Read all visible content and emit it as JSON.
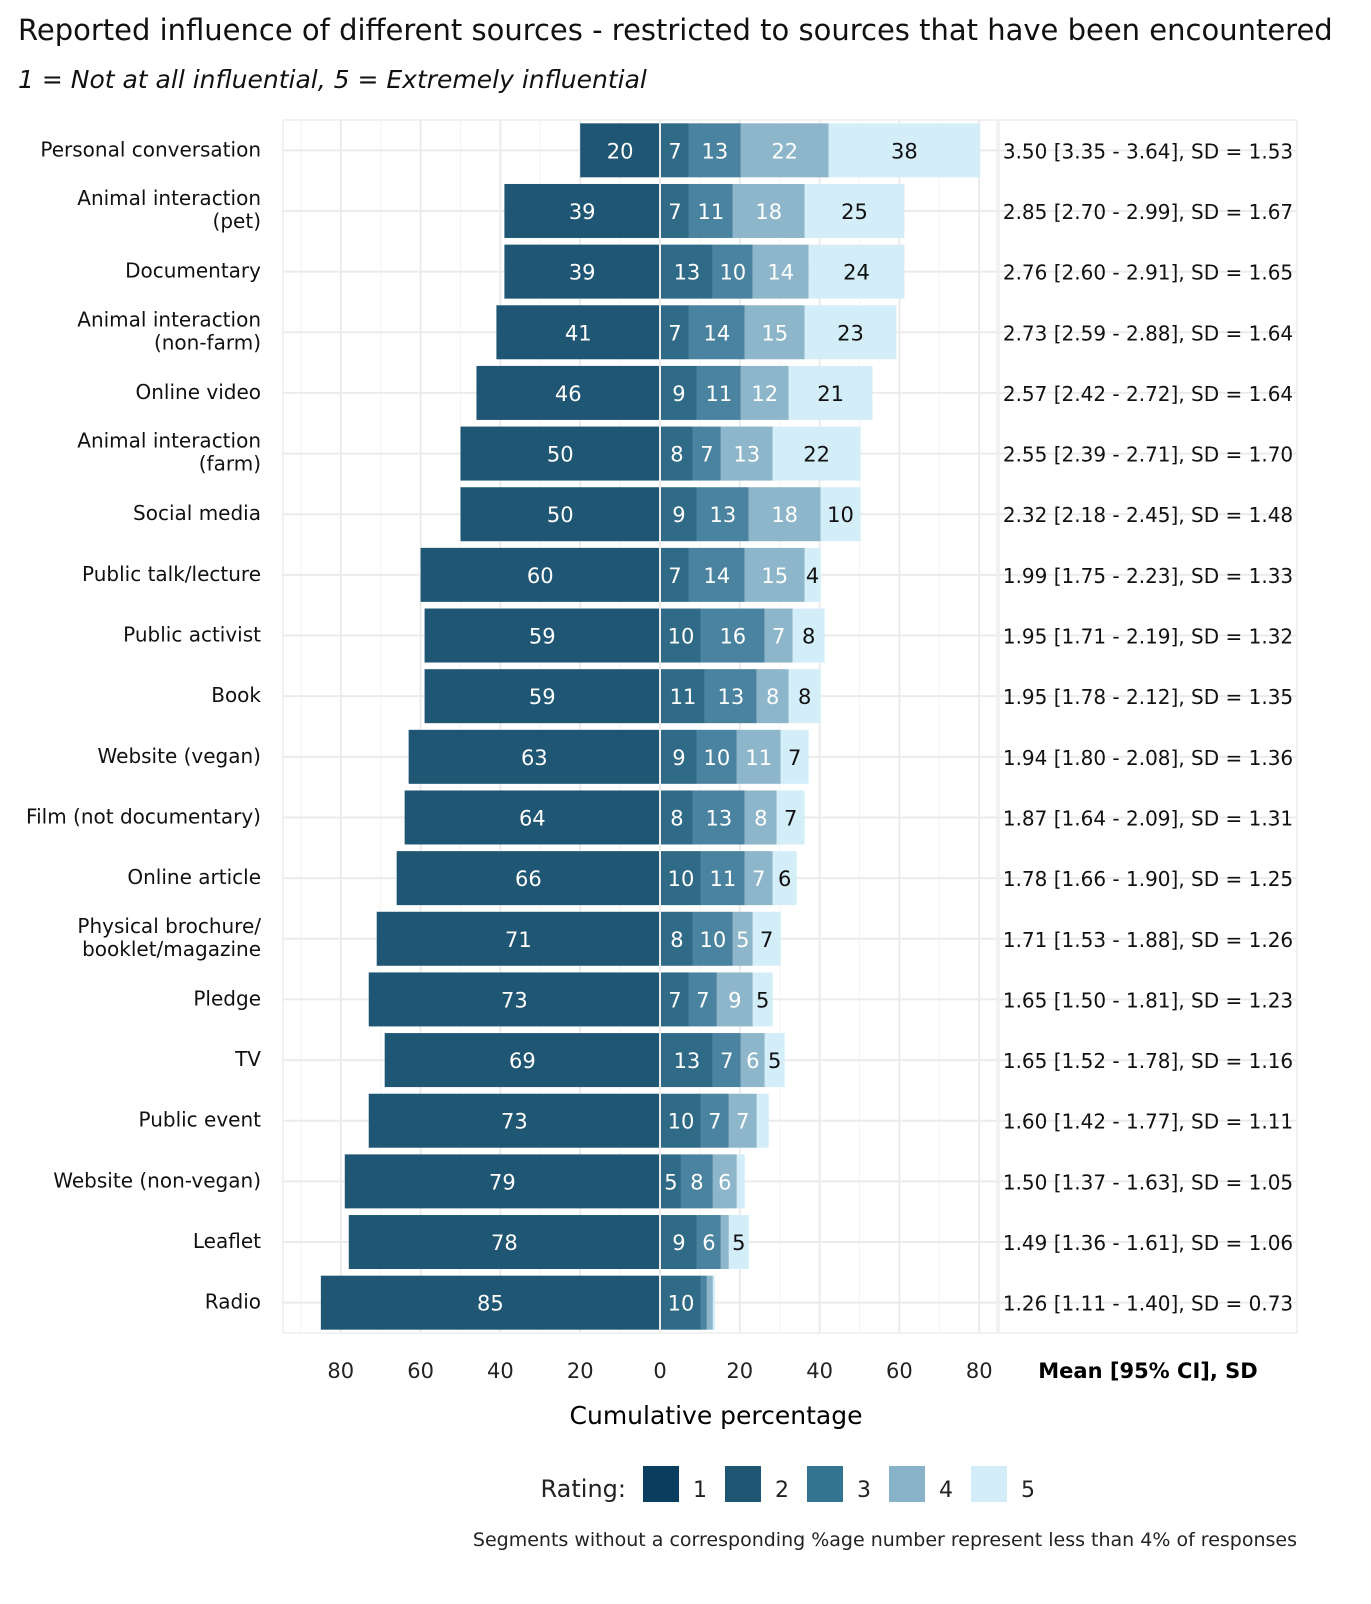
{
  "chart_data": {
    "type": "bar",
    "subtype": "diverging-stacked",
    "title": "Reported influence of different sources - restricted to sources that have been encountered",
    "subtitle": "1 = Not at all influential, 5 = Extremely influential",
    "xlabel": "Cumulative percentage",
    "stats_header": "Mean [95% CI], SD",
    "xlim": [
      -90,
      90
    ],
    "xticks": [
      -80,
      -60,
      -40,
      -20,
      0,
      20,
      40,
      60,
      80
    ],
    "xtick_labels": [
      "80",
      "60",
      "40",
      "20",
      "0",
      "20",
      "40",
      "60",
      "80"
    ],
    "legend_title": "Rating:",
    "legend": [
      "1",
      "2",
      "3",
      "4",
      "5"
    ],
    "legend_position": "bottom",
    "colors": [
      "#0b3d5e",
      "#1f5673",
      "#347591",
      "#87b2c7",
      "#d3eef9"
    ],
    "bar_colors": [
      "#1f5673",
      "#2f6a87",
      "#4a83a0",
      "#8db6ca",
      "#d3eef9"
    ],
    "caption": "Segments without a corresponding %age number represent less than 4% of responses",
    "categories": [
      [
        "Personal conversation"
      ],
      [
        "Animal interaction",
        "(pet)"
      ],
      [
        "Documentary"
      ],
      [
        "Animal interaction",
        "(non-farm)"
      ],
      [
        "Online video"
      ],
      [
        "Animal interaction",
        "(farm)"
      ],
      [
        "Social media"
      ],
      [
        "Public talk/lecture"
      ],
      [
        "Public activist"
      ],
      [
        "Book"
      ],
      [
        "Website (vegan)"
      ],
      [
        "Film (not documentary)"
      ],
      [
        "Online article"
      ],
      [
        "Physical brochure/",
        "booklet/magazine"
      ],
      [
        "Pledge"
      ],
      [
        "TV"
      ],
      [
        "Public event"
      ],
      [
        "Website (non-vegan)"
      ],
      [
        "Leaflet"
      ],
      [
        "Radio"
      ]
    ],
    "series": [
      {
        "name": "1",
        "values": [
          20,
          39,
          39,
          41,
          46,
          50,
          50,
          60,
          59,
          59,
          63,
          64,
          66,
          71,
          73,
          69,
          73,
          79,
          78,
          85
        ]
      },
      {
        "name": "2",
        "values": [
          7,
          7,
          13,
          7,
          9,
          8,
          9,
          7,
          10,
          11,
          9,
          8,
          10,
          8,
          7,
          13,
          10,
          5,
          9,
          10
        ]
      },
      {
        "name": "3",
        "values": [
          13,
          11,
          10,
          14,
          11,
          7,
          13,
          14,
          16,
          13,
          10,
          13,
          11,
          10,
          7,
          7,
          7,
          8,
          6,
          1.5
        ]
      },
      {
        "name": "4",
        "values": [
          22,
          18,
          14,
          15,
          12,
          13,
          18,
          15,
          7,
          8,
          11,
          8,
          7,
          5,
          9,
          6,
          7,
          6,
          2,
          1.5
        ]
      },
      {
        "name": "5",
        "values": [
          38,
          25,
          24,
          23,
          21,
          22,
          10,
          4,
          8,
          8,
          7,
          7,
          6,
          7,
          5,
          5,
          3,
          2,
          5,
          0.5
        ]
      }
    ],
    "stats": [
      "3.50 [3.35 - 3.64], SD = 1.53",
      "2.85 [2.70 - 2.99], SD = 1.67",
      "2.76 [2.60 - 2.91], SD = 1.65",
      "2.73 [2.59 - 2.88], SD = 1.64",
      "2.57 [2.42 - 2.72], SD = 1.64",
      "2.55 [2.39 - 2.71], SD = 1.70",
      "2.32 [2.18 - 2.45], SD = 1.48",
      "1.99 [1.75 - 2.23], SD = 1.33",
      "1.95 [1.71 - 2.19], SD = 1.32",
      "1.95 [1.78 - 2.12], SD = 1.35",
      "1.94 [1.80 - 2.08], SD = 1.36",
      "1.87 [1.64 - 2.09], SD = 1.31",
      "1.78 [1.66 - 1.90], SD = 1.25",
      "1.71 [1.53 - 1.88], SD = 1.26",
      "1.65 [1.50 - 1.81], SD = 1.23",
      "1.65 [1.52 - 1.78], SD = 1.16",
      "1.60 [1.42 - 1.77], SD = 1.11",
      "1.50 [1.37 - 1.63], SD = 1.05",
      "1.49 [1.36 - 1.61], SD = 1.06",
      "1.26 [1.11 - 1.40], SD = 0.73"
    ]
  }
}
